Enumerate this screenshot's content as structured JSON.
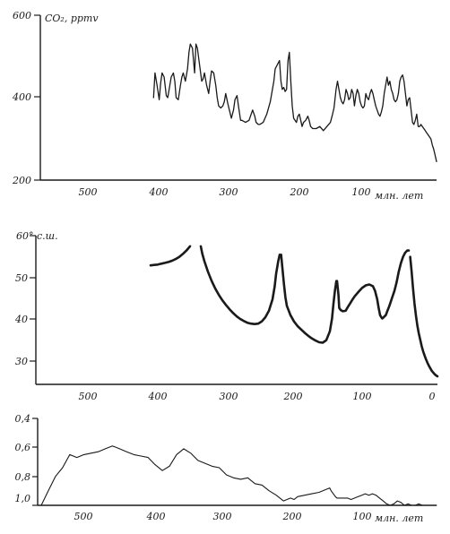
{
  "chart_data": [
    {
      "type": "line",
      "ylabel": "CO₂, ppmv",
      "xunit": "млн. лет",
      "y_ticks": [
        "600",
        "400",
        "200"
      ],
      "x_ticks": [
        "500",
        "400",
        "300",
        "200",
        "100"
      ],
      "xlim": [
        560,
        0
      ],
      "ylim": [
        200,
        600
      ],
      "color": "#1a1a1a",
      "series": [
        {
          "x": [
            400,
            398,
            395,
            392,
            390,
            388,
            385,
            382,
            380,
            378,
            375,
            372,
            370,
            368,
            365,
            362,
            360,
            358,
            355,
            352,
            350,
            348,
            345,
            342,
            340,
            338,
            335,
            332,
            330,
            328,
            325,
            322,
            320,
            318,
            315,
            312,
            310,
            308,
            305,
            302,
            300,
            298,
            295,
            290,
            287,
            285,
            282,
            280,
            277,
            275,
            270,
            265,
            262,
            260,
            257,
            255,
            252,
            250,
            245,
            240,
            235,
            230,
            228,
            225,
            222,
            220,
            218,
            216,
            214,
            212,
            210,
            208,
            206,
            204,
            202,
            200,
            198,
            196,
            194,
            192,
            190,
            188,
            185,
            182,
            180,
            178,
            175,
            170,
            165,
            160,
            155,
            150,
            147,
            145,
            142,
            140,
            138,
            136,
            134,
            132,
            130,
            128,
            126,
            124,
            122,
            120,
            118,
            116,
            114,
            112,
            110,
            108,
            106,
            104,
            102,
            100,
            98,
            96,
            94,
            92,
            90,
            88,
            86,
            84,
            82,
            80,
            78,
            76,
            74,
            72,
            70,
            68,
            66,
            64,
            62,
            60,
            58,
            56,
            54,
            52,
            50,
            48,
            46,
            44,
            42,
            40,
            38,
            36,
            34,
            32,
            30,
            28,
            26,
            24,
            22,
            20,
            18,
            16,
            14,
            12,
            10,
            8,
            6,
            4,
            2,
            0
          ],
          "values": [
            400,
            460,
            430,
            395,
            435,
            460,
            450,
            405,
            400,
            420,
            450,
            460,
            440,
            400,
            395,
            430,
            450,
            460,
            440,
            470,
            510,
            530,
            520,
            460,
            530,
            520,
            480,
            440,
            445,
            460,
            430,
            410,
            440,
            465,
            460,
            430,
            400,
            380,
            375,
            380,
            390,
            410,
            385,
            350,
            370,
            395,
            405,
            380,
            345,
            345,
            340,
            345,
            360,
            370,
            355,
            340,
            335,
            335,
            340,
            360,
            390,
            440,
            470,
            480,
            490,
            440,
            420,
            425,
            415,
            420,
            490,
            510,
            440,
            380,
            350,
            345,
            340,
            355,
            360,
            345,
            330,
            340,
            345,
            355,
            345,
            330,
            325,
            325,
            330,
            320,
            330,
            340,
            360,
            375,
            420,
            440,
            420,
            400,
            390,
            385,
            395,
            420,
            410,
            395,
            400,
            420,
            410,
            380,
            405,
            420,
            410,
            390,
            380,
            375,
            380,
            410,
            400,
            395,
            410,
            420,
            410,
            395,
            380,
            370,
            360,
            355,
            365,
            380,
            410,
            430,
            450,
            430,
            440,
            420,
            410,
            395,
            390,
            395,
            410,
            440,
            450,
            455,
            440,
            410,
            380,
            395,
            400,
            370,
            340,
            335,
            345,
            360,
            330,
            330,
            335,
            330,
            325,
            320,
            315,
            310,
            305,
            300,
            285,
            275,
            260,
            245
          ]
        }
      ]
    },
    {
      "type": "line",
      "ylabel": "60° с.ш.",
      "y_ticks": [
        "50",
        "40",
        "30"
      ],
      "x_ticks": [
        "500",
        "400",
        "300",
        "200",
        "100",
        "0"
      ],
      "xlim": [
        560,
        0
      ],
      "ylim": [
        25,
        60
      ],
      "color": "#1a1a1a",
      "series": [
        {
          "x": [
            400,
            395,
            390,
            385,
            380,
            375,
            370,
            365,
            360,
            355,
            350,
            345
          ],
          "values": [
            53,
            53.1,
            53.2,
            53.4,
            53.6,
            53.8,
            54.1,
            54.5,
            55.0,
            55.7,
            56.5,
            57.5
          ]
        },
        {
          "x": [
            330,
            328,
            325,
            320,
            315,
            310,
            305,
            300,
            295,
            290,
            285,
            280,
            275,
            270,
            265,
            260,
            255,
            250,
            245,
            240,
            235,
            230,
            227,
            225,
            222,
            220
          ],
          "values": [
            57.5,
            55.8,
            54.0,
            51.5,
            49.4,
            47.6,
            46.1,
            44.8,
            43.7,
            42.7,
            41.8,
            41.0,
            40.4,
            39.9,
            39.5,
            39.3,
            39.2,
            39.3,
            39.8,
            40.8,
            42.3,
            45.0,
            48.0,
            51.0,
            54.0,
            55.5
          ]
        },
        {
          "x": [
            218,
            216,
            214,
            212,
            210,
            205,
            200,
            195,
            190,
            185,
            180,
            175,
            170,
            165,
            160,
            155,
            150,
            147,
            145,
            143,
            141
          ],
          "values": [
            55.5,
            52.0,
            48.5,
            45.5,
            43.5,
            41.3,
            39.8,
            38.7,
            37.9,
            37.1,
            36.4,
            35.8,
            35.3,
            34.9,
            34.8,
            35.4,
            37.5,
            40.5,
            44.0,
            47.0,
            49.3
          ]
        },
        {
          "x": [
            140,
            138,
            137,
            135,
            132,
            128,
            125,
            122,
            118,
            115,
            110,
            105,
            100,
            95,
            90,
            87,
            84,
            82,
            80,
            78,
            77,
            75,
            72,
            70,
            67,
            64,
            60,
            57,
            54,
            51,
            48,
            45,
            42,
            40
          ],
          "values": [
            49.3,
            46.0,
            43.0,
            42.5,
            42.2,
            42.3,
            43.2,
            44.0,
            45.1,
            45.8,
            46.8,
            47.7,
            48.3,
            48.5,
            48.1,
            47.0,
            45.0,
            43.0,
            41.3,
            40.7,
            40.5,
            40.8,
            41.3,
            42.2,
            43.5,
            45.0,
            47.0,
            49.0,
            51.5,
            53.5,
            55.0,
            56.0,
            56.5,
            56.5
          ]
        },
        {
          "x": [
            38,
            36,
            34,
            32,
            30,
            28,
            26,
            24,
            22,
            20,
            18,
            16,
            14,
            12,
            10,
            8,
            6,
            4,
            2,
            0
          ],
          "values": [
            55.0,
            51.5,
            47.5,
            44.0,
            41.2,
            38.8,
            37.0,
            35.5,
            34.0,
            32.8,
            31.8,
            30.9,
            30.1,
            29.4,
            28.8,
            28.2,
            27.8,
            27.4,
            27.1,
            26.9
          ]
        }
      ]
    },
    {
      "type": "line",
      "xunit": "млн. лет",
      "y_ticks": [
        "0,4",
        "0,6",
        "0,8",
        "1,0"
      ],
      "x_ticks": [
        "500",
        "400",
        "300",
        "200",
        "100"
      ],
      "xlim": [
        560,
        0
      ],
      "ylim": [
        1.0,
        0.4
      ],
      "color": "#1a1a1a",
      "series": [
        {
          "x": [
            555,
            545,
            535,
            525,
            515,
            505,
            495,
            485,
            475,
            465,
            455,
            445,
            435,
            425,
            415,
            405,
            395,
            385,
            375,
            365,
            355,
            345,
            335,
            325,
            315,
            305,
            295,
            285,
            275,
            265,
            255,
            245,
            235,
            225,
            215,
            205,
            200,
            195,
            185,
            175,
            165,
            155,
            150,
            148,
            145,
            142,
            140,
            135,
            130,
            125,
            120,
            115,
            110,
            105,
            100,
            95,
            90,
            85,
            80,
            75,
            70,
            65,
            60,
            55,
            50,
            45,
            40,
            35,
            30,
            25,
            20,
            15,
            10,
            5,
            0
          ],
          "values": [
            1.0,
            0.9,
            0.8,
            0.74,
            0.65,
            0.67,
            0.65,
            0.64,
            0.63,
            0.61,
            0.59,
            0.61,
            0.63,
            0.65,
            0.66,
            0.67,
            0.72,
            0.76,
            0.73,
            0.65,
            0.61,
            0.64,
            0.69,
            0.71,
            0.73,
            0.74,
            0.79,
            0.81,
            0.82,
            0.81,
            0.85,
            0.86,
            0.9,
            0.93,
            0.97,
            0.95,
            0.96,
            0.94,
            0.93,
            0.92,
            0.91,
            0.89,
            0.88,
            0.9,
            0.92,
            0.94,
            0.95,
            0.95,
            0.95,
            0.95,
            0.96,
            0.95,
            0.94,
            0.93,
            0.92,
            0.93,
            0.92,
            0.93,
            0.95,
            0.97,
            0.99,
            1.0,
            0.99,
            0.97,
            0.98,
            1.0,
            0.99,
            1.0,
            1.0,
            0.99,
            1.0,
            1.0,
            1.0,
            1.0,
            1.0
          ]
        }
      ]
    }
  ]
}
